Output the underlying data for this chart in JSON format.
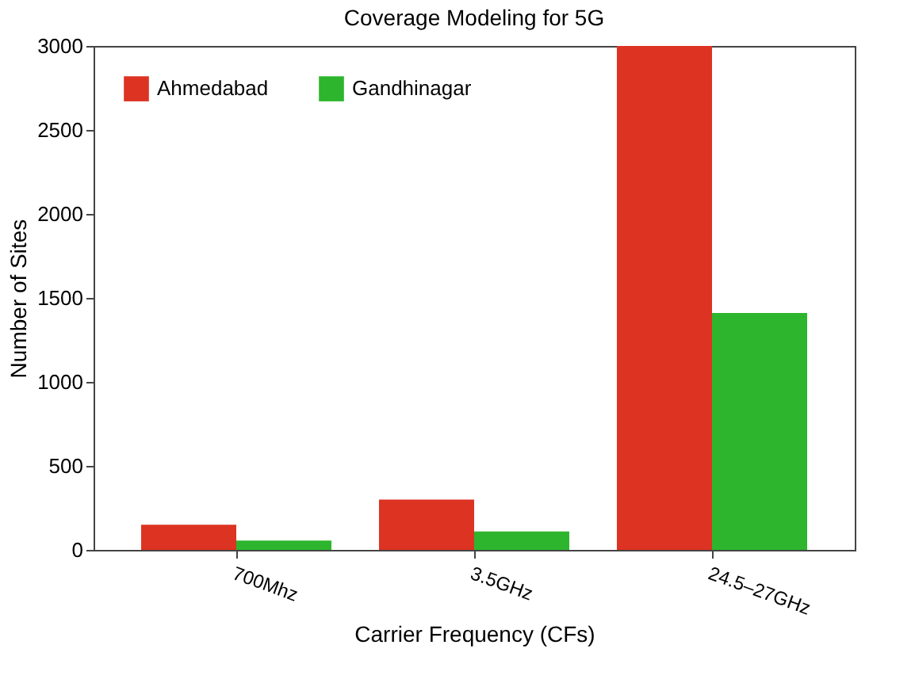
{
  "chart_data": {
    "type": "bar",
    "title": "Coverage Modeling for 5G",
    "xlabel": "Carrier Frequency (CFs)",
    "ylabel": "Number of Sites",
    "categories": [
      "700Mhz",
      "3.5GHz",
      "24.5–27GHz"
    ],
    "series": [
      {
        "name": "Ahmedabad",
        "color": "#dd3322",
        "values": [
          150,
          300,
          3000
        ]
      },
      {
        "name": "Gandhinagar",
        "color": "#2db52d",
        "values": [
          55,
          110,
          1410
        ]
      }
    ],
    "ylim": [
      0,
      3000
    ],
    "yticks": [
      0,
      500,
      1000,
      1500,
      2000,
      2500,
      3000
    ],
    "grid": false,
    "legend": "top left"
  }
}
